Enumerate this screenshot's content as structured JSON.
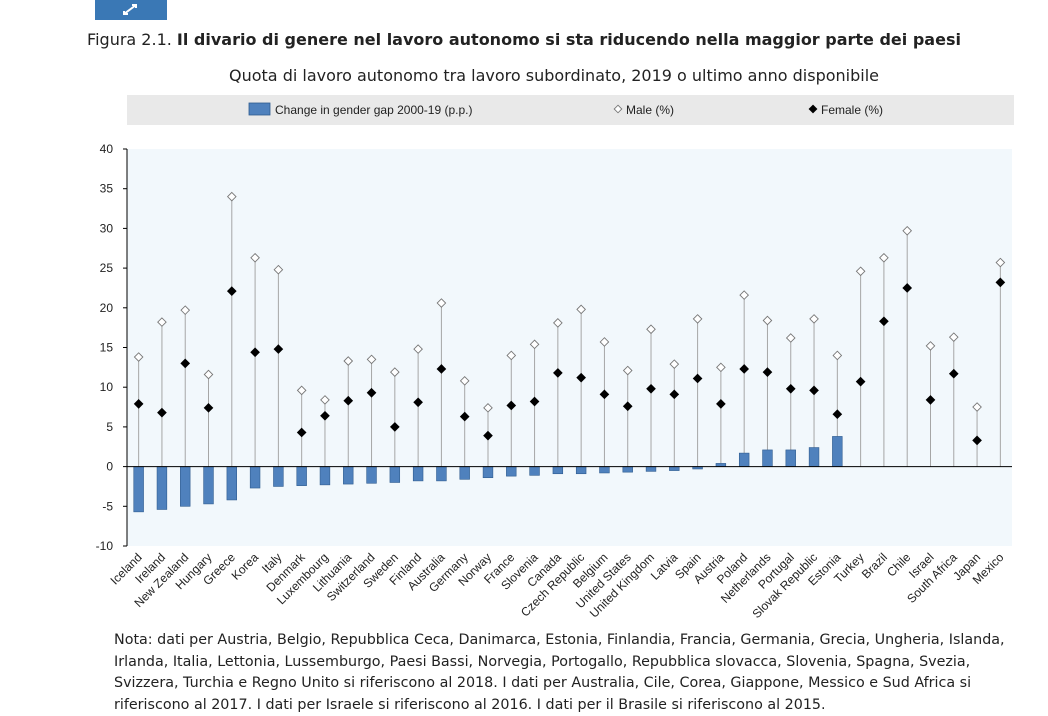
{
  "header": {
    "figure_number": "Figura 2.1.",
    "figure_title": "Il divario di genere nel lavoro autonomo si sta riducendo nella maggior parte dei paesi",
    "subtitle": "Quota di lavoro autonomo tra lavoro subordinato, 2019 o ultimo anno disponibile",
    "expand_icon": "expand-arrows-icon"
  },
  "chart_data": {
    "type": "bar",
    "legend_position": "top",
    "grid": false,
    "ylim": [
      -10,
      40
    ],
    "yticks": [
      "40",
      "35",
      "30",
      "25",
      "20",
      "15",
      "10",
      "5",
      "0",
      "-5",
      "-10"
    ],
    "ytick_values": [
      40,
      35,
      30,
      25,
      20,
      15,
      10,
      5,
      0,
      -5,
      -10
    ],
    "categories": [
      "Iceland",
      "Ireland",
      "New Zealand",
      "Hungary",
      "Greece",
      "Korea",
      "Italy",
      "Denmark",
      "Luxembourg",
      "Lithuania",
      "Switzerland",
      "Sweden",
      "Finland",
      "Australia",
      "Germany",
      "Norway",
      "France",
      "Slovenia",
      "Canada",
      "Czech Republic",
      "Belgium",
      "United States",
      "United Kingdom",
      "Latvia",
      "Spain",
      "Austria",
      "Poland",
      "Netherlands",
      "Portugal",
      "Slovak Republic",
      "Estonia",
      "Turkey",
      "Brazil",
      "Chile",
      "Israel",
      "South Africa",
      "Japan",
      "Mexico"
    ],
    "series": [
      {
        "name": "Change in gender gap 2000-19 (p.p.)",
        "kind": "bar",
        "color": "#4f81bd",
        "values": [
          -5.7,
          -5.4,
          -5.0,
          -4.7,
          -4.2,
          -2.7,
          -2.5,
          -2.4,
          -2.3,
          -2.2,
          -2.1,
          -2.0,
          -1.8,
          -1.8,
          -1.6,
          -1.4,
          -1.2,
          -1.1,
          -0.9,
          -0.9,
          -0.8,
          -0.7,
          -0.6,
          -0.5,
          -0.3,
          0.4,
          1.7,
          2.1,
          2.1,
          2.4,
          3.8,
          null,
          null,
          null,
          null,
          null,
          null,
          null
        ]
      },
      {
        "name": "Male (%)",
        "kind": "marker",
        "marker": "hollow-diamond",
        "values": [
          13.8,
          18.2,
          19.7,
          11.6,
          34.0,
          26.3,
          24.8,
          9.6,
          8.4,
          13.3,
          13.5,
          11.9,
          14.8,
          20.6,
          10.8,
          7.4,
          14.0,
          15.4,
          18.1,
          19.8,
          15.7,
          12.1,
          17.3,
          12.9,
          18.6,
          12.5,
          21.6,
          18.4,
          16.2,
          18.6,
          14.0,
          24.6,
          26.3,
          29.7,
          15.2,
          16.3,
          7.5,
          25.7
        ]
      },
      {
        "name": "Female (%)",
        "kind": "marker",
        "marker": "filled-diamond",
        "values": [
          7.9,
          6.8,
          13.0,
          7.4,
          22.1,
          14.4,
          14.8,
          4.3,
          6.4,
          8.3,
          9.3,
          5.0,
          8.1,
          12.3,
          6.3,
          3.9,
          7.7,
          8.2,
          11.8,
          11.2,
          9.1,
          7.6,
          9.8,
          9.1,
          11.1,
          7.9,
          12.3,
          11.9,
          9.8,
          9.6,
          6.6,
          10.7,
          18.3,
          22.5,
          8.4,
          11.7,
          3.3,
          23.2
        ]
      }
    ]
  },
  "note": {
    "lines": [
      "Nota: dati per Austria, Belgio, Repubblica Ceca, Danimarca, Estonia, Finlandia, Francia, Germania, Grecia, Ungheria, Islanda,",
      "Irlanda, Italia, Lettonia, Lussemburgo, Paesi Bassi, Norvegia, Portogallo, Repubblica slovacca, Slovenia, Spagna, Svezia,",
      "Svizzera, Turchia e Regno Unito si riferiscono al 2018. I dati per Australia, Cile, Corea, Giappone, Messico e Sud Africa si",
      "riferiscono al 2017. I dati per Israele si riferiscono al 2016. I dati per il Brasile si riferiscono al 2015."
    ]
  }
}
